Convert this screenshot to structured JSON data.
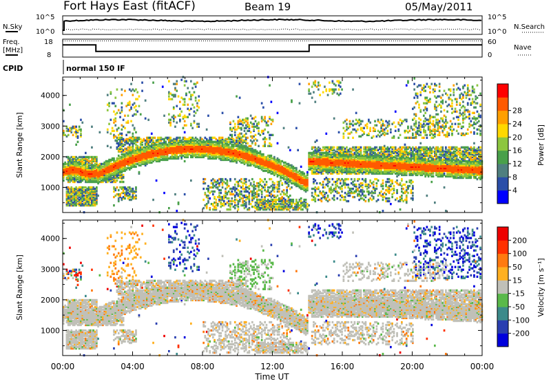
{
  "header": {
    "title": "Fort Hays East (fitACF)",
    "beam": "Beam 19",
    "date": "05/May/2011"
  },
  "top_panels": {
    "nsky_label": "N.Sky",
    "nsearch_label": "N.Search",
    "freq_label_line1": "Freq.",
    "freq_label_line2": "[MHz]",
    "nave_label": "Nave",
    "cpid_label": "CPID",
    "noise_ticks_left": [
      "10^5",
      "10^0"
    ],
    "noise_ticks_right": [
      "10^5",
      "10^0"
    ],
    "freq_ticks": [
      "18",
      "8"
    ],
    "nave_ticks": [
      "60",
      "0"
    ],
    "cpid_text": "normal 150 IF",
    "freq_series": {
      "x_hours": [
        0,
        1.9,
        1.9,
        14.1,
        14.1,
        24
      ],
      "y_mhz": [
        15,
        15,
        11,
        11,
        15,
        15
      ]
    },
    "freq_range": [
      8,
      18
    ]
  },
  "chart_data": [
    {
      "type": "heatmap",
      "panel": "power",
      "ylabel": "Slant Range [km]",
      "xlim": [
        0,
        24
      ],
      "ylim": [
        180,
        4600
      ],
      "yticks": [
        1000,
        2000,
        3000,
        4000
      ],
      "colorbar": {
        "label": "Power [dB]",
        "ticks": [
          "4",
          "8",
          "12",
          "16",
          "20",
          "24",
          "28"
        ],
        "colors": [
          "#0000ff",
          "#2a4ea8",
          "#4f7f7f",
          "#49a04a",
          "#8dc63f",
          "#ffd800",
          "#ff9f00",
          "#ff5a00",
          "#ff0000"
        ]
      }
    },
    {
      "type": "heatmap",
      "panel": "velocity",
      "ylabel": "Slant Range [km]",
      "xlabel": "Time UT",
      "xlim": [
        0,
        24
      ],
      "ylim": [
        180,
        4600
      ],
      "yticks": [
        1000,
        2000,
        3000,
        4000
      ],
      "xticks": [
        "00:00",
        "04:00",
        "08:00",
        "12:00",
        "16:00",
        "20:00",
        "00:00"
      ],
      "colorbar": {
        "label": "Velocity [m s⁻¹]",
        "ticks": [
          "200",
          "100",
          "50",
          "15",
          "-15",
          "-50",
          "-100",
          "-200"
        ],
        "colors": [
          "#0000dd",
          "#2a3fb0",
          "#3c8a8a",
          "#5ab94a",
          "#c0c0b8",
          "#ffb020",
          "#ff7a10",
          "#ff3000",
          "#ee0000"
        ]
      }
    }
  ],
  "colors": {
    "ground_scatter": "#c0c0b8"
  }
}
